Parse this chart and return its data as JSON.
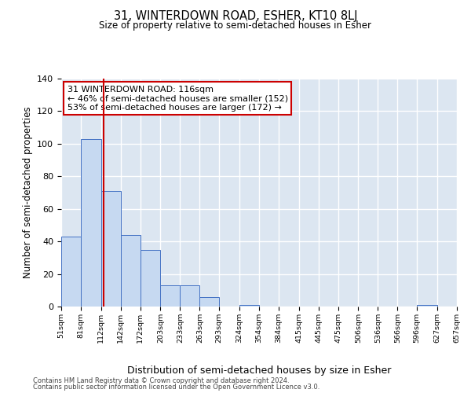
{
  "title": "31, WINTERDOWN ROAD, ESHER, KT10 8LJ",
  "subtitle": "Size of property relative to semi-detached houses in Esher",
  "xlabel": "Distribution of semi-detached houses by size in Esher",
  "ylabel": "Number of semi-detached properties",
  "bin_edges": [
    51,
    81,
    112,
    142,
    172,
    203,
    233,
    263,
    293,
    324,
    354,
    384,
    415,
    445,
    475,
    506,
    536,
    566,
    596,
    627,
    657
  ],
  "bar_heights": [
    43,
    103,
    71,
    44,
    35,
    13,
    13,
    6,
    0,
    1,
    0,
    0,
    0,
    0,
    0,
    0,
    0,
    0,
    1,
    0
  ],
  "bar_color": "#c6d9f1",
  "bar_edge_color": "#4472c4",
  "property_value": 116,
  "red_line_color": "#cc0000",
  "annotation_title": "31 WINTERDOWN ROAD: 116sqm",
  "annotation_line1": "← 46% of semi-detached houses are smaller (152)",
  "annotation_line2": "53% of semi-detached houses are larger (172) →",
  "annotation_box_color": "#cc0000",
  "ylim": [
    0,
    140
  ],
  "yticks": [
    0,
    20,
    40,
    60,
    80,
    100,
    120,
    140
  ],
  "bg_color": "#dce6f1",
  "grid_color": "#ffffff",
  "footer_line1": "Contains HM Land Registry data © Crown copyright and database right 2024.",
  "footer_line2": "Contains public sector information licensed under the Open Government Licence v3.0."
}
